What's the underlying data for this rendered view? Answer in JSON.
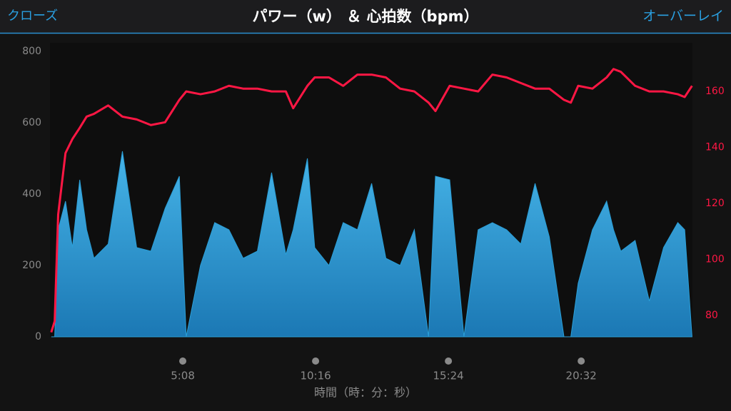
{
  "header": {
    "left": "クローズ",
    "right": "オーバーレイ"
  },
  "chart_data": {
    "type": "area_line",
    "title": "パワー（w） ＆ 心拍数（bpm）",
    "x_label": "時間（時：分：秒）",
    "x": [
      3,
      11,
      19,
      36,
      52,
      69,
      85,
      102,
      135,
      168,
      201,
      234,
      267,
      300,
      316,
      349,
      382,
      415,
      448,
      481,
      514,
      547,
      564,
      597,
      614,
      647,
      680,
      713,
      746,
      779,
      812,
      845,
      878,
      894,
      927,
      960,
      993,
      1026,
      1059,
      1092,
      1125,
      1158,
      1192,
      1208,
      1225,
      1258,
      1291,
      1307,
      1324,
      1357,
      1390,
      1423,
      1456,
      1472,
      1489
    ],
    "series": [
      {
        "name": "パワー",
        "color": "#2a9fd8",
        "axis": "y",
        "values": [
          0,
          0,
          300,
          380,
          250,
          440,
          300,
          220,
          260,
          520,
          250,
          240,
          360,
          450,
          0,
          200,
          320,
          300,
          220,
          240,
          460,
          230,
          300,
          500,
          250,
          200,
          320,
          300,
          430,
          220,
          200,
          300,
          0,
          450,
          440,
          0,
          300,
          320,
          300,
          260,
          430,
          280,
          0,
          0,
          150,
          300,
          380,
          300,
          240,
          270,
          100,
          250,
          320,
          300,
          0
        ]
      },
      {
        "name": "心拍数",
        "color": "#ff1744",
        "axis": "y2",
        "values": [
          74,
          78,
          116,
          138,
          143,
          147,
          151,
          152,
          155,
          151,
          150,
          148,
          149,
          157,
          160,
          159,
          160,
          162,
          161,
          161,
          160,
          160,
          154,
          162,
          165,
          165,
          162,
          166,
          166,
          165,
          161,
          160,
          156,
          153,
          162,
          161,
          160,
          166,
          165,
          163,
          161,
          161,
          157,
          156,
          162,
          161,
          165,
          168,
          167,
          162,
          160,
          160,
          159,
          158,
          162
        ]
      }
    ],
    "xlim": [
      0,
      1490
    ],
    "xticks": [
      {
        "value": 308,
        "label": "5:08"
      },
      {
        "value": 616,
        "label": "10:16"
      },
      {
        "value": 924,
        "label": "15:24"
      },
      {
        "value": 1232,
        "label": "20:32"
      }
    ],
    "ylim": [
      0,
      800
    ],
    "yticks": [
      0,
      200,
      400,
      600,
      800
    ],
    "y2lim": [
      72.4,
      174.3
    ],
    "y2ticks": [
      80,
      100,
      120,
      140,
      160
    ]
  }
}
